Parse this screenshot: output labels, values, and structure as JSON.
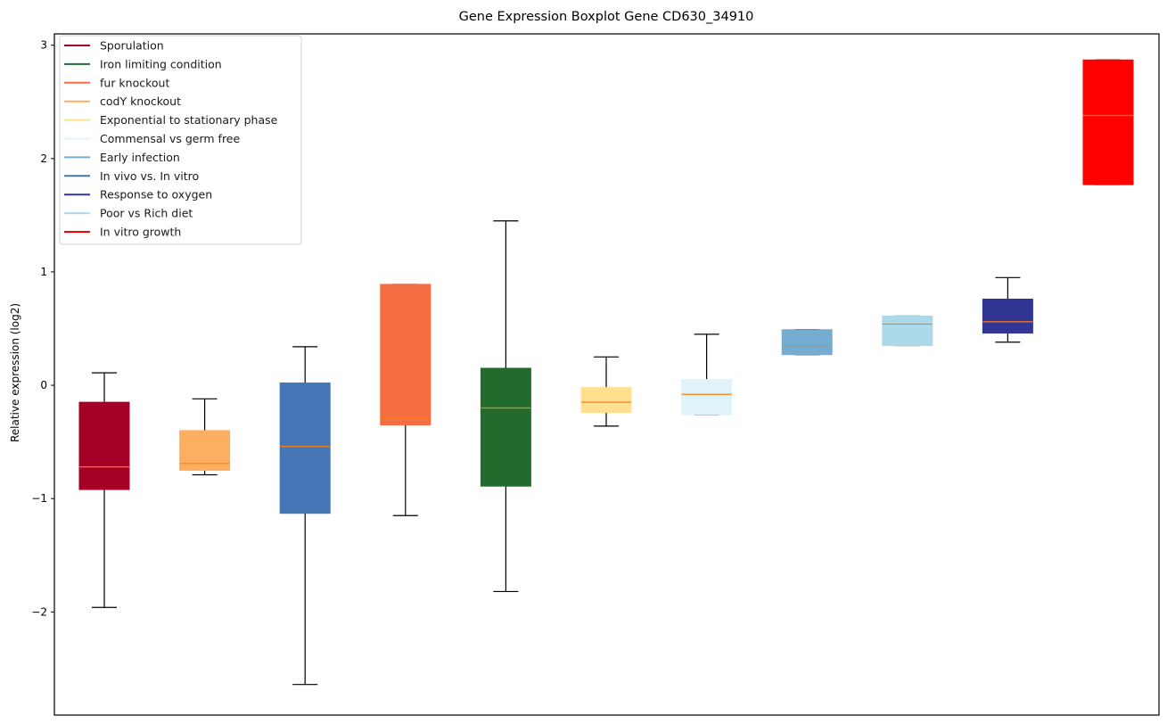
{
  "chart_data": {
    "type": "boxplot",
    "title": "Gene Expression Boxplot Gene CD630_34910",
    "xlabel": "",
    "ylabel": "Relative expression (log2)",
    "ylim": [
      -2.91,
      3.1
    ],
    "yticks": [
      3,
      2,
      1,
      0,
      -1,
      -2
    ],
    "ytick_labels": [
      "3",
      "2",
      "1",
      "0",
      "−1",
      "−2"
    ],
    "xticks_visible": false,
    "grid": false,
    "legend_position": "top-left",
    "median_color": "#ff7f0e",
    "legend": [
      {
        "label": "Sporulation",
        "color": "#a50026"
      },
      {
        "label": "Iron limiting condition",
        "color": "#236b2d"
      },
      {
        "label": "fur knockout",
        "color": "#f46d43"
      },
      {
        "label": "codY knockout",
        "color": "#fdae61"
      },
      {
        "label": "Exponential to stationary phase",
        "color": "#fee090"
      },
      {
        "label": "Commensal vs germ free",
        "color": "#e0f3f8"
      },
      {
        "label": "Early infection",
        "color": "#74add1"
      },
      {
        "label": "In vivo vs. In vitro",
        "color": "#4575b4"
      },
      {
        "label": "Response to oxygen",
        "color": "#313695"
      },
      {
        "label": "Poor vs Rich diet",
        "color": "#abd9e9"
      },
      {
        "label": "In vitro growth",
        "color": "#ff0000"
      }
    ],
    "boxes": [
      {
        "name": "Sporulation",
        "color": "#a50026",
        "whisker_low": -1.96,
        "q1": -0.92,
        "median": -0.72,
        "q3": -0.15,
        "whisker_high": 0.11
      },
      {
        "name": "codY knockout",
        "color": "#fdae61",
        "whisker_low": -0.79,
        "q1": -0.75,
        "median": -0.69,
        "q3": -0.4,
        "whisker_high": -0.12
      },
      {
        "name": "In vivo vs. In vitro",
        "color": "#4575b4",
        "whisker_low": -2.64,
        "q1": -1.13,
        "median": -0.54,
        "q3": 0.02,
        "whisker_high": 0.34
      },
      {
        "name": "fur knockout",
        "color": "#f46d43",
        "whisker_low": -1.15,
        "q1": -0.35,
        "median": -0.29,
        "q3": 0.89,
        "whisker_high": 0.89
      },
      {
        "name": "Iron limiting condition",
        "color": "#236b2d",
        "whisker_low": -1.82,
        "q1": -0.89,
        "median": -0.2,
        "q3": 0.15,
        "whisker_high": 1.45
      },
      {
        "name": "Exponential to stationary phase",
        "color": "#fee090",
        "whisker_low": -0.36,
        "q1": -0.24,
        "median": -0.15,
        "q3": -0.02,
        "whisker_high": 0.25
      },
      {
        "name": "Commensal vs germ free",
        "color": "#e0f3f8",
        "whisker_low": -0.26,
        "q1": -0.26,
        "median": -0.08,
        "q3": 0.05,
        "whisker_high": 0.45
      },
      {
        "name": "Early infection",
        "color": "#74add1",
        "whisker_low": 0.27,
        "q1": 0.27,
        "median": 0.35,
        "q3": 0.49,
        "whisker_high": 0.49
      },
      {
        "name": "Poor vs Rich diet",
        "color": "#abd9e9",
        "whisker_low": 0.35,
        "q1": 0.35,
        "median": 0.54,
        "q3": 0.61,
        "whisker_high": 0.61
      },
      {
        "name": "Response to oxygen",
        "color": "#313695",
        "whisker_low": 0.38,
        "q1": 0.46,
        "median": 0.56,
        "q3": 0.76,
        "whisker_high": 0.95
      },
      {
        "name": "In vitro growth",
        "color": "#ff0000",
        "whisker_low": 1.77,
        "q1": 1.77,
        "median": 2.38,
        "q3": 2.87,
        "whisker_high": 2.87
      }
    ]
  }
}
